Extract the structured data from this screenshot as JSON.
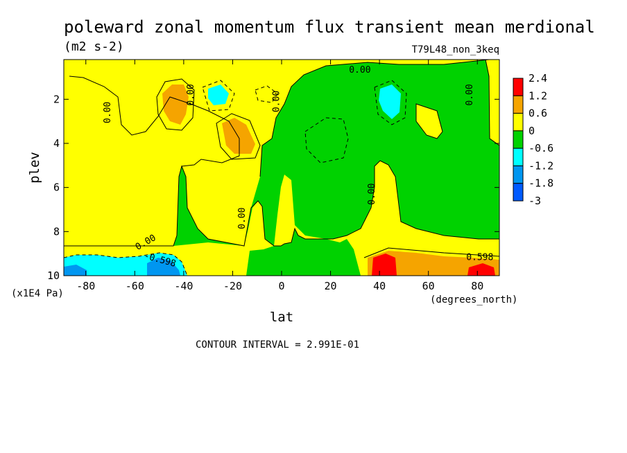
{
  "chart_data": {
    "type": "heatmap",
    "title": "poleward zonal momentum flux transient mean merdional",
    "units": "(m2 s-2)",
    "run_label": "T79L48_non_3keq",
    "xlabel": "lat",
    "x_units": "(degrees_north)",
    "ylabel": "plev",
    "y_units": "(x1E4 Pa)",
    "xlim": [
      -89,
      89
    ],
    "ylim": [
      10,
      0.2
    ],
    "x_ticks": [
      -80,
      -60,
      -40,
      -20,
      0,
      20,
      40,
      60,
      80
    ],
    "x_tick_labels": [
      "-80",
      "-60",
      "-40",
      "-20",
      "0",
      "20",
      "40",
      "60",
      "80"
    ],
    "y_ticks": [
      2,
      4,
      6,
      8,
      10
    ],
    "y_tick_labels": [
      "2",
      "4",
      "6",
      "8",
      "10"
    ],
    "colorbar": {
      "labels": [
        "2.4",
        "1.2",
        "0.6",
        "0",
        "-0.6",
        "-1.2",
        "-1.8",
        "-3"
      ],
      "colors": [
        "#ff0000",
        "#f5a400",
        "#ffff00",
        "#00d200",
        "#00ffff",
        "#0096f0",
        "#005aff"
      ]
    },
    "contour_labels": [
      "0.00",
      "0.00",
      "0.00",
      "0.00",
      "0.00",
      "0.00",
      "0.00",
      "0.00",
      "-0.598",
      "0.598"
    ],
    "footer": "CONTOUR INTERVAL = 2.991E-01"
  }
}
